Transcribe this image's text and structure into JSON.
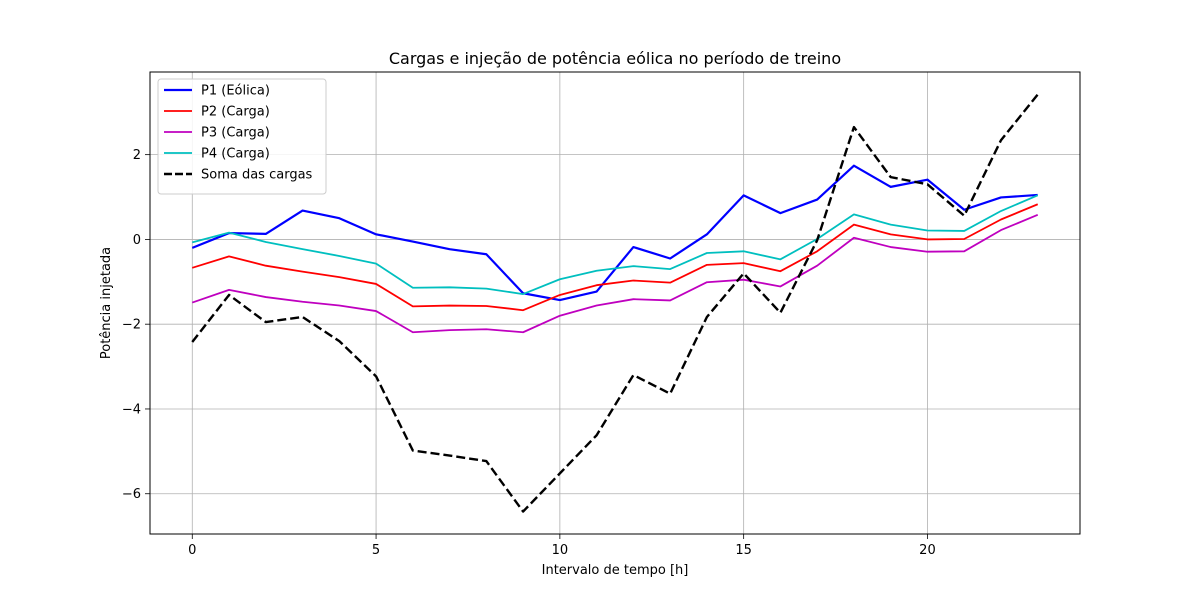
{
  "chart_data": {
    "type": "line",
    "title": "Cargas e injeção de potência eólica no período de treino",
    "xlabel": "Intervalo de tempo [h]",
    "ylabel": "Potência injetada",
    "xlim": [
      -1.15,
      24.15
    ],
    "ylim": [
      -6.95,
      3.95
    ],
    "xticks": [
      0,
      5,
      10,
      15,
      20
    ],
    "yticks": [
      -6,
      -4,
      -2,
      0,
      2
    ],
    "ytick_labels": [
      "−6",
      "−4",
      "−2",
      "0",
      "2"
    ],
    "grid": true,
    "legend_position": "upper-left",
    "x": [
      0,
      1,
      2,
      3,
      4,
      5,
      6,
      7,
      8,
      9,
      10,
      11,
      12,
      13,
      14,
      15,
      16,
      17,
      18,
      19,
      20,
      21,
      22,
      23
    ],
    "series": [
      {
        "name": "P1 (Eólica)",
        "color": "#0000ff",
        "dash": "solid",
        "width": 2.2,
        "values": [
          -0.2,
          0.15,
          0.13,
          0.68,
          0.5,
          0.12,
          -0.05,
          -0.23,
          -0.35,
          -1.27,
          -1.43,
          -1.23,
          -0.18,
          -0.45,
          0.12,
          1.04,
          0.62,
          0.94,
          1.74,
          1.24,
          1.41,
          0.7,
          0.99,
          1.05
        ]
      },
      {
        "name": "P2 (Carga)",
        "color": "#ff0000",
        "dash": "solid",
        "width": 1.8,
        "values": [
          -0.67,
          -0.4,
          -0.62,
          -0.76,
          -0.89,
          -1.05,
          -1.58,
          -1.56,
          -1.57,
          -1.67,
          -1.31,
          -1.08,
          -0.97,
          -1.02,
          -0.6,
          -0.56,
          -0.75,
          -0.28,
          0.35,
          0.12,
          0,
          0.01,
          0.47,
          0.83
        ]
      },
      {
        "name": "P3 (Carga)",
        "color": "#bf00bf",
        "dash": "solid",
        "width": 1.8,
        "values": [
          -1.49,
          -1.19,
          -1.36,
          -1.47,
          -1.56,
          -1.69,
          -2.19,
          -2.14,
          -2.12,
          -2.19,
          -1.8,
          -1.56,
          -1.41,
          -1.44,
          -1.01,
          -0.95,
          -1.11,
          -0.62,
          0.04,
          -0.18,
          -0.29,
          -0.28,
          0.22,
          0.58
        ]
      },
      {
        "name": "P4 (Carga)",
        "color": "#00bfbf",
        "dash": "solid",
        "width": 1.8,
        "values": [
          -0.07,
          0.16,
          -0.06,
          -0.23,
          -0.39,
          -0.57,
          -1.14,
          -1.13,
          -1.16,
          -1.29,
          -0.94,
          -0.74,
          -0.63,
          -0.7,
          -0.32,
          -0.28,
          -0.47,
          0.01,
          0.59,
          0.35,
          0.21,
          0.2,
          0.67,
          1.04
        ]
      },
      {
        "name": "Soma das cargas",
        "color": "#000000",
        "dash": "dashed",
        "width": 2.4,
        "values": [
          -2.42,
          -1.31,
          -1.95,
          -1.83,
          -2.4,
          -3.23,
          -4.98,
          -5.1,
          -5.23,
          -6.42,
          -5.52,
          -4.62,
          -3.2,
          -3.64,
          -1.83,
          -0.8,
          -1.73,
          -0.02,
          2.65,
          1.47,
          1.3,
          0.56,
          2.34,
          3.42
        ]
      }
    ]
  }
}
